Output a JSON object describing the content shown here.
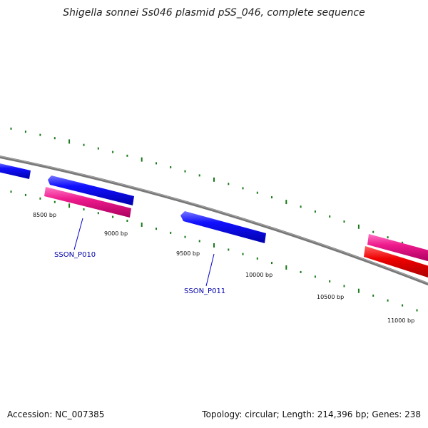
{
  "title": "Shigella sonnei Ss046 plasmid pSS_046, complete sequence",
  "footer": {
    "accession": "Accession: NC_007385",
    "summary": "Topology: circular; Length: 214,396 bp; Genes: 238"
  },
  "colors": {
    "backbone": "#808080",
    "tick": "#1a7a1a",
    "cds_blue": "#0000ee",
    "cds_pink": "#ee1188",
    "cds_red": "#ee0000",
    "label": "#0000aa"
  },
  "scale": {
    "labels": [
      "8500 bp",
      "9000 bp",
      "9500 bp",
      "10000 bp",
      "10500 bp",
      "11000 bp"
    ]
  },
  "genes": [
    {
      "label": "SSON_P010"
    },
    {
      "label": "SSON_P011"
    }
  ]
}
